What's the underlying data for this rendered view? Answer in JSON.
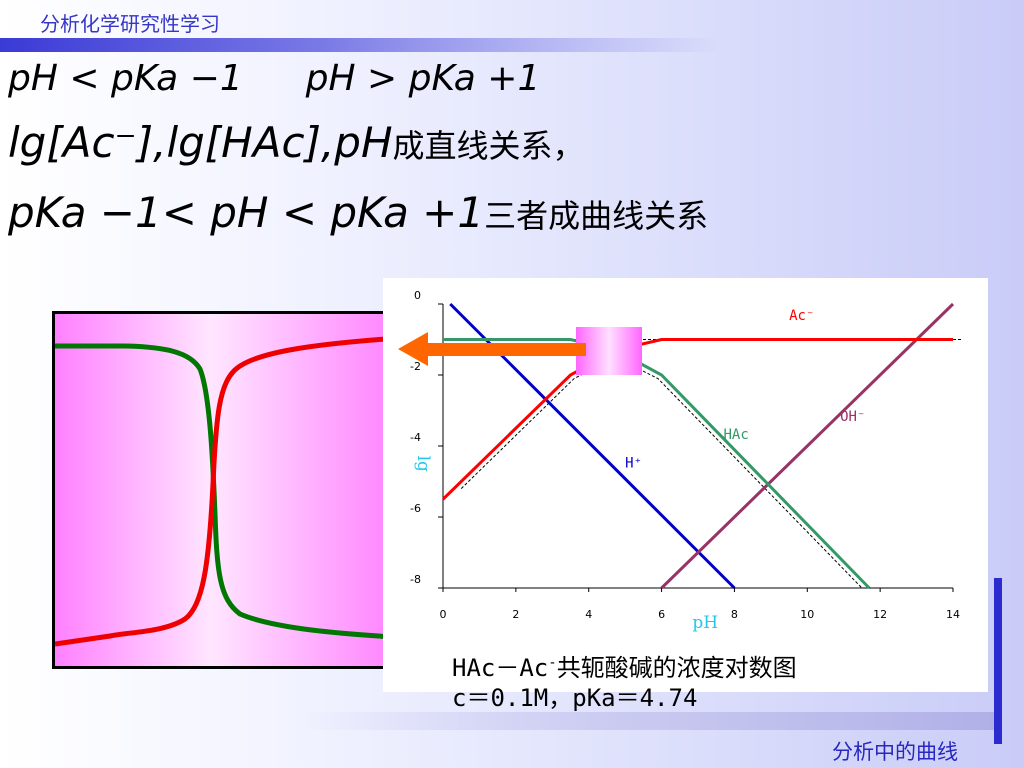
{
  "header": {
    "title": "分析化学研究性学习"
  },
  "footer": {
    "title": "分析中的曲线"
  },
  "formulas": {
    "line1_part1": "pH < pKa −1",
    "line1_part2": "pH > pKa +1",
    "line2_math": "lg[Ac⁻],lg[HAc],pH",
    "line2_text": "成直线关系，",
    "line3_math": "pKa −1< pH < pKa +1",
    "line3_text": "三者成曲线关系"
  },
  "caption": {
    "line1_pre": "HAc－Ac",
    "line1_sup": "-",
    "line1_post": "共轭酸碱的浓度对数图",
    "line2": "c＝0.1M，pKa＝4.74"
  },
  "chart_data": {
    "type": "line",
    "xlabel": "pH",
    "ylabel": "lg",
    "xlim": [
      0,
      14
    ],
    "ylim": [
      -8,
      0
    ],
    "x_ticks": [
      "0",
      "2",
      "4",
      "6",
      "8",
      "10",
      "12",
      "14"
    ],
    "y_ticks": [
      "0",
      "-2",
      "-4",
      "-6",
      "-8"
    ],
    "series": [
      {
        "name": "H⁺",
        "color": "#0000cc",
        "points": [
          [
            0.2,
            0
          ],
          [
            8,
            -8
          ]
        ]
      },
      {
        "name": "OH⁻",
        "color": "#993366",
        "points": [
          [
            6,
            -8
          ],
          [
            14,
            0
          ]
        ]
      },
      {
        "name": "HAc",
        "color": "#339966",
        "points": [
          [
            0,
            -1
          ],
          [
            3.5,
            -1
          ],
          [
            4.74,
            -1.3
          ],
          [
            6,
            -2
          ],
          [
            11.7,
            -8
          ]
        ]
      },
      {
        "name": "Ac⁻",
        "color": "#ff0000",
        "points": [
          [
            0,
            -5.5
          ],
          [
            3.5,
            -2
          ],
          [
            4.74,
            -1.3
          ],
          [
            6,
            -1
          ],
          [
            14,
            -1
          ]
        ]
      }
    ]
  },
  "sigmoid_panel": {
    "curves": [
      {
        "name": "green",
        "color": "#007700"
      },
      {
        "name": "red",
        "color": "#ee0000"
      }
    ]
  }
}
